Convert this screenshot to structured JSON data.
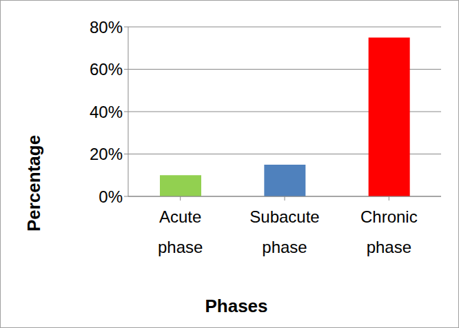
{
  "chart_data": {
    "type": "bar",
    "x_label": "Phases",
    "y_label": "Percentage",
    "categories": [
      "Acute phase",
      "Subacute phase",
      "Chronic phase"
    ],
    "values": [
      10,
      15,
      75
    ],
    "colors": [
      "#92d050",
      "#4f81bd",
      "#ff0000"
    ],
    "ylim": [
      0,
      80
    ],
    "yticks": [
      {
        "value": 0,
        "label": "0%"
      },
      {
        "value": 20,
        "label": "20%"
      },
      {
        "value": 40,
        "label": "40%"
      },
      {
        "value": 60,
        "label": "60%"
      },
      {
        "value": 80,
        "label": "80%"
      }
    ],
    "grid": true
  }
}
